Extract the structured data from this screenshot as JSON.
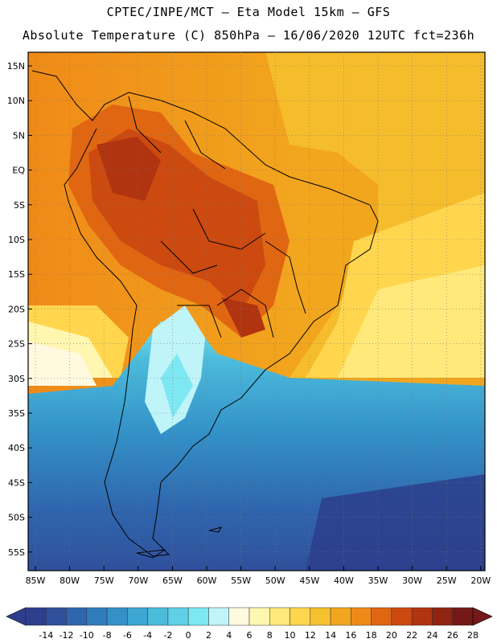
{
  "header": {
    "line1": "CPTEC/INPE/MCT –   Eta Model 15km – GFS",
    "line2": "Absolute Temperature (C) 850hPa – 16/06/2020 12UTC fct=236h"
  },
  "map": {
    "lat_labels": [
      "15N",
      "10N",
      "5N",
      "EQ",
      "5S",
      "10S",
      "15S",
      "20S",
      "25S",
      "30S",
      "35S",
      "40S",
      "45S",
      "50S",
      "55S"
    ],
    "lon_labels": [
      "85W",
      "80W",
      "75W",
      "70W",
      "65W",
      "60W",
      "55W",
      "50W",
      "45W",
      "40W",
      "35W",
      "30W",
      "25W",
      "20W"
    ]
  },
  "colorbar": {
    "labels": [
      "-14",
      "-12",
      "-10",
      "-8",
      "-6",
      "-4",
      "-2",
      "0",
      "2",
      "4",
      "6",
      "8",
      "10",
      "12",
      "14",
      "16",
      "18",
      "20",
      "22",
      "24",
      "26",
      "28"
    ],
    "colors": [
      "#2c3e8c",
      "#30509c",
      "#2f66ad",
      "#2f7cbc",
      "#3391c8",
      "#3ea6d2",
      "#4cbcdc",
      "#5fd0e6",
      "#7de8f2",
      "#bff4f9",
      "#fff9e0",
      "#fff6b0",
      "#ffe97a",
      "#ffd64e",
      "#f6c12f",
      "#f2a61e",
      "#ef8a18",
      "#e06612",
      "#cc4a10",
      "#b03410",
      "#902410",
      "#741818"
    ]
  }
}
